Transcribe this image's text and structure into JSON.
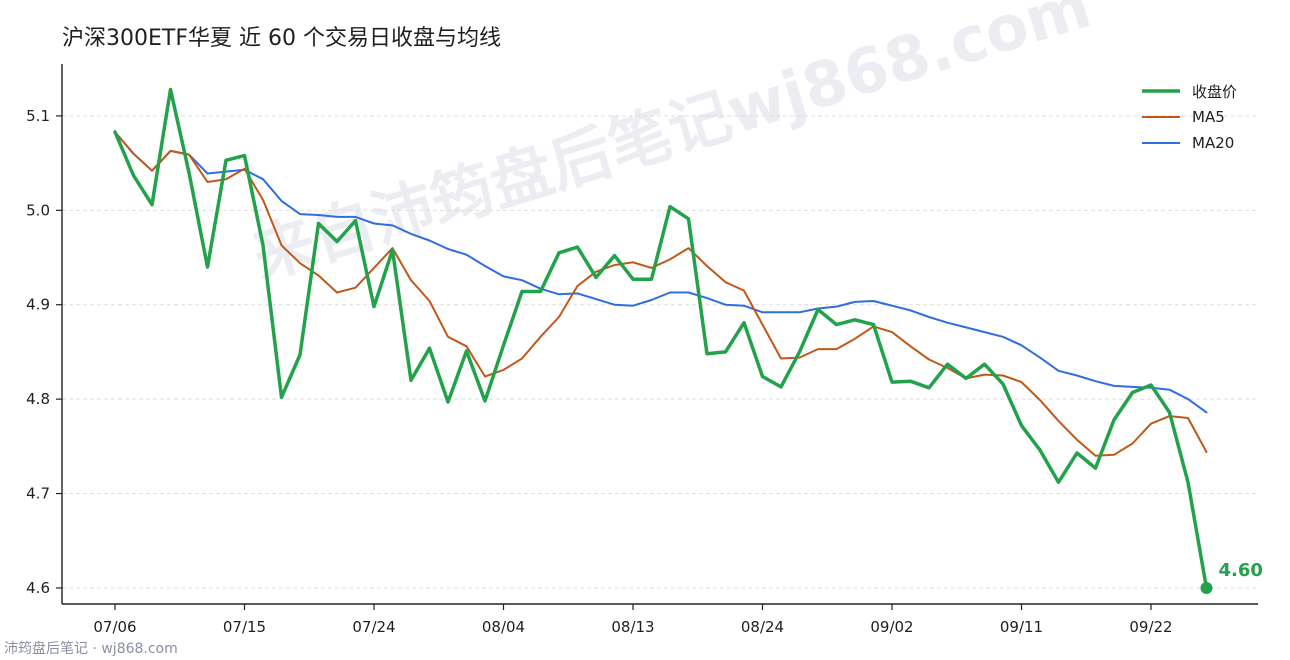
{
  "title": "沪深300ETF华夏 近 60 个交易日收盘与均线",
  "footer": "沛筠盘后笔记 · wj868.com",
  "watermark": "来自沛筠盘后笔记wj868.com",
  "colors": {
    "close": "#22a24a",
    "ma5": "#c0581a",
    "ma20": "#2f6de0",
    "axis": "#222222",
    "grid": "#dddddd"
  },
  "chart_data": {
    "type": "line",
    "title": "沪深300ETF华夏 近 60 个交易日收盘与均线",
    "x_tick_labels": [
      "07/06",
      "07/15",
      "07/24",
      "08/04",
      "08/13",
      "08/24",
      "09/02",
      "09/11",
      "09/22"
    ],
    "x_tick_indices": [
      0,
      7,
      14,
      21,
      28,
      35,
      42,
      49,
      56
    ],
    "y_ticks": [
      4.6,
      4.7,
      4.8,
      4.9,
      5.0,
      5.1
    ],
    "ylim": [
      4.583,
      5.155
    ],
    "grid": "horizontal dashed",
    "legend_position": "top-right",
    "series": [
      {
        "name": "收盘价",
        "values": [
          5.083,
          5.037,
          5.006,
          5.128,
          5.04,
          4.94,
          5.053,
          5.058,
          4.963,
          4.802,
          4.847,
          4.986,
          4.967,
          4.989,
          4.898,
          4.958,
          4.82,
          4.854,
          4.797,
          4.851,
          4.798,
          4.857,
          4.914,
          4.914,
          4.955,
          4.961,
          4.929,
          4.952,
          4.927,
          4.927,
          5.004,
          4.991,
          4.848,
          4.85,
          4.881,
          4.824,
          4.813,
          4.85,
          4.895,
          4.879,
          4.884,
          4.879,
          4.818,
          4.819,
          4.812,
          4.837,
          4.822,
          4.837,
          4.816,
          4.772,
          4.746,
          4.712,
          4.743,
          4.727,
          4.778,
          4.807,
          4.815,
          4.786,
          4.712,
          4.6
        ]
      },
      {
        "name": "MA5",
        "values": [
          5.083,
          5.06,
          5.042,
          5.063,
          5.059,
          5.03,
          5.033,
          5.044,
          5.011,
          4.963,
          4.944,
          4.931,
          4.913,
          4.918,
          4.939,
          4.96,
          4.926,
          4.904,
          4.866,
          4.856,
          4.824,
          4.831,
          4.843,
          4.866,
          4.887,
          4.92,
          4.935,
          4.942,
          4.945,
          4.939,
          4.948,
          4.96,
          4.941,
          4.924,
          4.915,
          4.879,
          4.843,
          4.844,
          4.853,
          4.853,
          4.864,
          4.877,
          4.871,
          4.856,
          4.842,
          4.833,
          4.822,
          4.826,
          4.825,
          4.818,
          4.799,
          4.777,
          4.757,
          4.74,
          4.741,
          4.753,
          4.774,
          4.782,
          4.78,
          4.744
        ]
      },
      {
        "name": "MA20",
        "values": [
          5.083,
          5.06,
          5.042,
          5.063,
          5.059,
          5.039,
          5.041,
          5.043,
          5.033,
          5.01,
          4.996,
          4.995,
          4.993,
          4.993,
          4.986,
          4.984,
          4.975,
          4.968,
          4.959,
          4.953,
          4.941,
          4.93,
          4.926,
          4.917,
          4.911,
          4.912,
          4.906,
          4.9,
          4.899,
          4.905,
          4.913,
          4.913,
          4.907,
          4.9,
          4.899,
          4.892,
          4.892,
          4.892,
          4.896,
          4.898,
          4.903,
          4.904,
          4.899,
          4.894,
          4.887,
          4.881,
          4.876,
          4.871,
          4.866,
          4.857,
          4.844,
          4.83,
          4.825,
          4.819,
          4.814,
          4.813,
          4.812,
          4.81,
          4.8,
          4.786
        ]
      }
    ],
    "annotation": {
      "text": "4.60",
      "index": 59,
      "value": 4.6
    }
  }
}
